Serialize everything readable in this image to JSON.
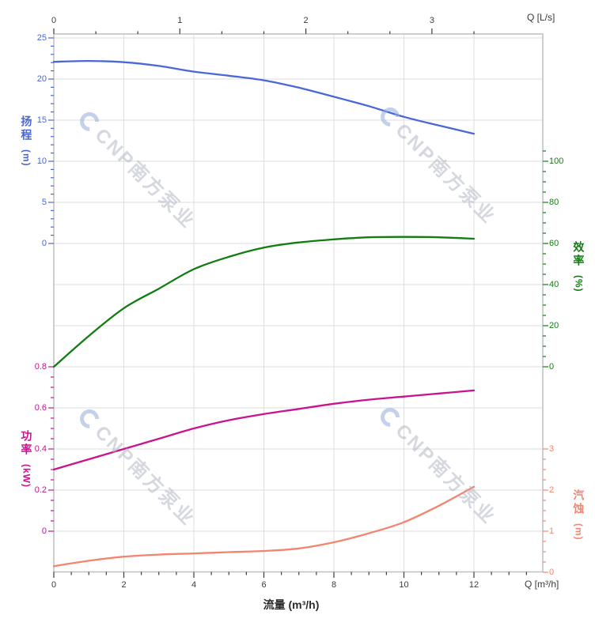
{
  "watermark": {
    "text": "CNP南方泵业"
  },
  "chart_data": {
    "type": "line",
    "title": "",
    "legend": "none",
    "grid": true,
    "x_bottom": {
      "axis_label": "流量 (m³/h)",
      "unit_label": "Q [m³/h]",
      "unit": "m³/h",
      "ticks": [
        0,
        2,
        4,
        6,
        8,
        10,
        12
      ],
      "minor_step": 0.5,
      "minor_range": [
        0,
        13.5
      ],
      "range": [
        0,
        13.97
      ],
      "tick_color": "#3c3c3c"
    },
    "x_top": {
      "unit_label": "Q [L/s]",
      "unit": "L/s",
      "ticks": [
        0,
        1,
        2,
        3
      ],
      "minor_step": 0.33333,
      "minor_range": [
        0,
        3.3333
      ],
      "to_m3h": 3.6,
      "tick_color": "#3c3c3c"
    },
    "y_axes": [
      {
        "id": "head",
        "title": "扬程",
        "unit": "(m)",
        "side": "left",
        "color": "#4a67d8",
        "ticks": [
          25,
          20,
          15,
          10,
          5,
          0
        ],
        "minor_step": 1,
        "range": [
          0,
          25
        ]
      },
      {
        "id": "efficiency",
        "title": "效率",
        "unit": "(%)",
        "side": "right",
        "color": "#117d11",
        "ticks": [
          100,
          80,
          60,
          40,
          20,
          0
        ],
        "minor_step": 5,
        "range": [
          0,
          105
        ]
      },
      {
        "id": "power",
        "title": "功率",
        "unit": "(kW)",
        "side": "left",
        "color": "#c9138f",
        "ticks": [
          0.8,
          0.6,
          0.4,
          0.2,
          0
        ],
        "minor_step": 0.05,
        "range": [
          0,
          0.8
        ]
      },
      {
        "id": "npsh",
        "title": "汽蚀",
        "unit": "(m)",
        "side": "right",
        "color": "#f5846f",
        "ticks": [
          3,
          2,
          1,
          0
        ],
        "minor_step": 0.25,
        "range": [
          0,
          3
        ]
      }
    ],
    "x": [
      0,
      1,
      2,
      3,
      4,
      5,
      6,
      7,
      8,
      9,
      10,
      11,
      12
    ],
    "series": [
      {
        "name": "head",
        "axis": "head",
        "color": "#4a67d8",
        "values": [
          22.1,
          22.2,
          22.05,
          21.6,
          20.9,
          20.4,
          19.85,
          18.95,
          17.85,
          16.7,
          15.4,
          14.35,
          13.35
        ]
      },
      {
        "name": "efficiency",
        "axis": "efficiency",
        "color": "#117d11",
        "values": [
          0,
          15,
          28.5,
          38,
          47.5,
          53.5,
          58,
          60.5,
          62,
          63,
          63.2,
          63,
          62.3
        ]
      },
      {
        "name": "power",
        "axis": "power",
        "color": "#c9138f",
        "values": [
          0.3,
          0.35,
          0.4,
          0.45,
          0.5,
          0.54,
          0.57,
          0.595,
          0.62,
          0.64,
          0.655,
          0.67,
          0.685
        ]
      },
      {
        "name": "npsh",
        "axis": "npsh",
        "color": "#f5846f",
        "values": [
          0.15,
          0.28,
          0.38,
          0.43,
          0.46,
          0.49,
          0.52,
          0.58,
          0.73,
          0.95,
          1.22,
          1.62,
          2.08
        ]
      }
    ]
  }
}
